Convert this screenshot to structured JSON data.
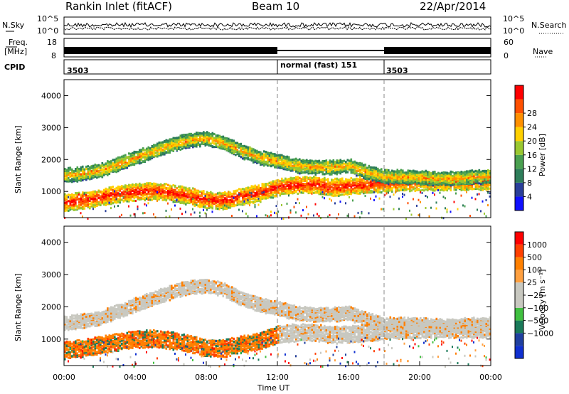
{
  "header": {
    "station": "Rankin Inlet (fitACF)",
    "beam": "Beam 10",
    "date": "22/Apr/2014"
  },
  "strip": {
    "nsky_label": "N.Sky",
    "nsky_ticks": [
      "10^5",
      "10^0"
    ],
    "nsearch_label": "N.Search",
    "nsearch_ticks": [
      "10^5",
      "10^0"
    ],
    "freq_label": "Freq.",
    "freq_unit": "[MHz]",
    "freq_ticks": [
      "18",
      "8"
    ],
    "nave_label": "Nave",
    "nave_ticks": [
      "60",
      "0"
    ],
    "cpid_label": "CPID",
    "cpid_segments": [
      {
        "label": "3503",
        "start_h": 0,
        "end_h": 12
      },
      {
        "label": "normal (fast) 151",
        "start_h": 12,
        "end_h": 18
      },
      {
        "label": "3503",
        "start_h": 18,
        "end_h": 24
      }
    ]
  },
  "colors": {
    "power": [
      "#1010ff",
      "#2a3f9a",
      "#2e7e5a",
      "#4aa050",
      "#9ac830",
      "#ffd000",
      "#ff9000",
      "#ff5000",
      "#ff0000"
    ],
    "velocity": [
      "#ff0000",
      "#ff4000",
      "#ff8000",
      "#ffa040",
      "#c8c8c0",
      "#c8c8c0",
      "#40c040",
      "#1a7a5a",
      "#2040a0",
      "#1030d0"
    ]
  },
  "chart_data": [
    {
      "type": "heatmap",
      "xlabel": "",
      "ylabel": "Slant Range [km]",
      "xlim_h": [
        0,
        24
      ],
      "ylim": [
        180,
        4500
      ],
      "yticks": [
        1000,
        2000,
        3000,
        4000
      ],
      "colorbar": {
        "label": "Power [dB]",
        "ticks": [
          "4",
          "8",
          "12",
          "16",
          "20",
          "24",
          "28"
        ]
      },
      "bands": [
        {
          "start_h": 0,
          "end_h": 24,
          "ranges": [
            [
              0,
              700
            ],
            [
              1,
              760
            ],
            [
              2,
              860
            ],
            [
              3,
              960
            ],
            [
              4,
              1040
            ],
            [
              5,
              1060
            ],
            [
              6,
              1000
            ],
            [
              7,
              900
            ],
            [
              8,
              780
            ],
            [
              9,
              760
            ],
            [
              10,
              900
            ],
            [
              11,
              1000
            ],
            [
              12,
              1180
            ],
            [
              13,
              1250
            ],
            [
              14,
              1260
            ],
            [
              15,
              1180
            ],
            [
              16,
              1200
            ],
            [
              17,
              1250
            ],
            [
              18,
              1300
            ],
            [
              19,
              1320
            ],
            [
              20,
              1350
            ],
            [
              21,
              1350
            ],
            [
              22,
              1360
            ],
            [
              23,
              1360
            ],
            [
              24,
              1370
            ]
          ],
          "thickness": 520,
          "level": "high"
        },
        {
          "start_h": 0,
          "end_h": 24,
          "ranges": [
            [
              0,
              1550
            ],
            [
              1,
              1600
            ],
            [
              2,
              1700
            ],
            [
              3,
              1900
            ],
            [
              4,
              2100
            ],
            [
              5,
              2300
            ],
            [
              6,
              2500
            ],
            [
              7,
              2650
            ],
            [
              8,
              2700
            ],
            [
              9,
              2550
            ],
            [
              10,
              2300
            ],
            [
              11,
              2100
            ],
            [
              12,
              2000
            ],
            [
              13,
              1850
            ],
            [
              14,
              1800
            ],
            [
              15,
              1800
            ],
            [
              16,
              1850
            ],
            [
              17,
              1650
            ],
            [
              18,
              1500
            ],
            [
              19,
              1500
            ],
            [
              20,
              1480
            ],
            [
              21,
              1450
            ],
            [
              22,
              1450
            ],
            [
              23,
              1500
            ],
            [
              24,
              1500
            ]
          ],
          "thickness": 420,
          "level": "mid"
        }
      ]
    },
    {
      "type": "heatmap",
      "xlabel": "Time UT",
      "ylabel": "Slant Range [km]",
      "xlim_h": [
        0,
        24
      ],
      "ylim": [
        180,
        4500
      ],
      "yticks": [
        1000,
        2000,
        3000,
        4000
      ],
      "xticks": [
        "00:00",
        "04:00",
        "08:00",
        "12:00",
        "16:00",
        "20:00",
        "00:00"
      ],
      "colorbar": {
        "label": "Velocity [m s⁻¹]",
        "ticks": [
          "1000",
          "500",
          "100",
          "25",
          "−25",
          "−100",
          "−500",
          "−1000"
        ]
      }
    }
  ]
}
